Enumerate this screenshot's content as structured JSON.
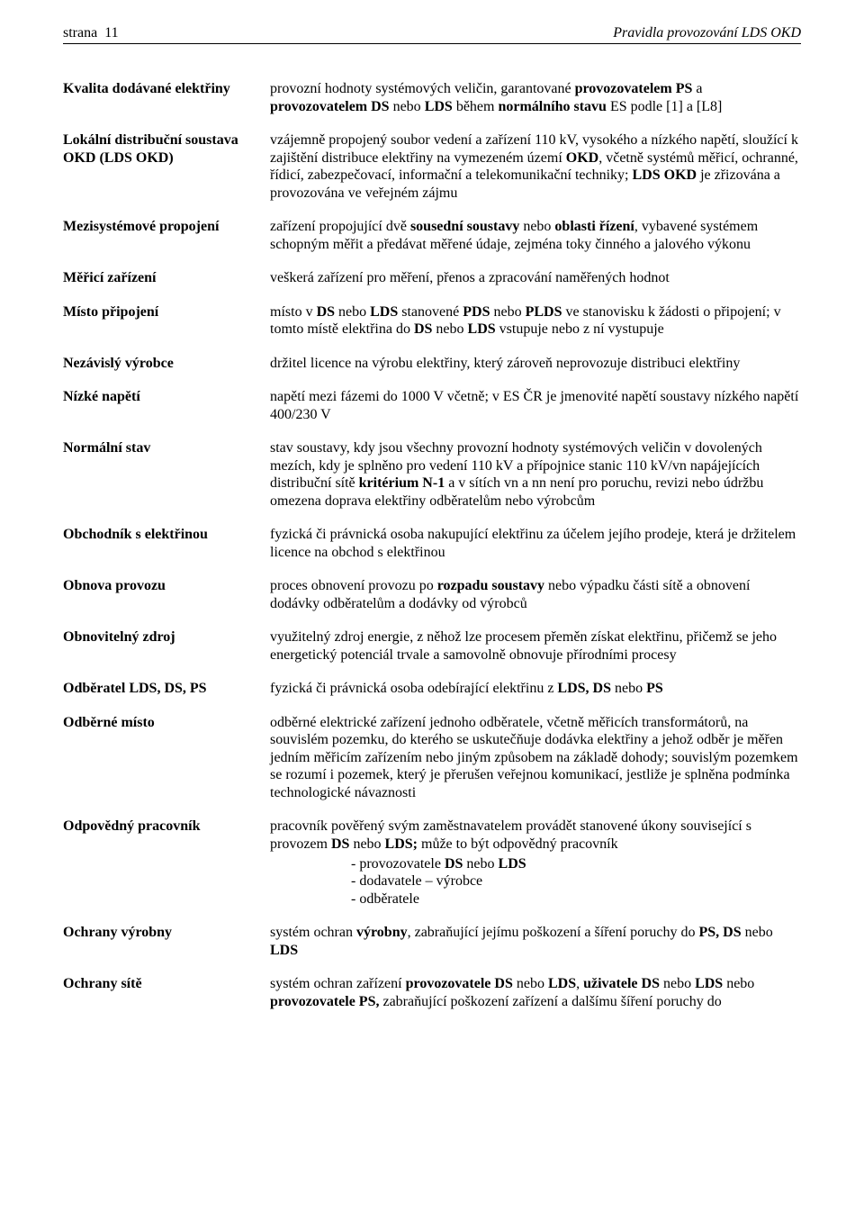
{
  "header": {
    "page_label": "strana",
    "page_number": "11",
    "doc_title": "Pravidla provozování LDS OKD"
  },
  "definitions": [
    {
      "term": "Kvalita dodávané elektřiny",
      "desc_html": "provozní hodnoty systémových veličin, garantované <b>provozovatelem PS</b> a <b>provozovatelem DS</b> nebo <b>LDS</b> během <b>normálního stavu</b> ES podle [1] a [L8]"
    },
    {
      "term": "Lokální distribuční soustava OKD (LDS OKD)",
      "desc_html": "vzájemně propojený soubor vedení a zařízení 110 kV, vysokého a nízkého napětí, sloužící k zajištění distribuce elektřiny na vymezeném území <b>OKD</b>, včetně systémů měřicí, ochranné, řídicí, zabezpečovací, informační a telekomunikační techniky; <b>LDS OKD</b> je zřizována a provozována ve veřejném zájmu"
    },
    {
      "term": "Mezisystémové propojení",
      "desc_html": "zařízení propojující dvě <b>sousední soustavy</b> nebo <b>oblasti řízení</b>, vybavené systémem schopným měřit a předávat měřené údaje, zejména toky činného a jalového výkonu"
    },
    {
      "term": "Měřicí zařízení",
      "desc_html": "veškerá zařízení pro měření, přenos a zpracování naměřených hodnot"
    },
    {
      "term": "Místo připojení",
      "desc_html": "místo v <b>DS</b> nebo <b>LDS</b> stanovené <b>PDS</b> nebo <b>PLDS</b> ve stanovisku k žádosti o připojení; v tomto místě elektřina do <b>DS</b> nebo <b>LDS</b> vstupuje nebo z ní vystupuje"
    },
    {
      "term": "Nezávislý výrobce",
      "desc_html": "držitel licence na výrobu elektřiny, který zároveň neprovozuje distribuci elektřiny"
    },
    {
      "term": "Nízké napětí",
      "desc_html": "napětí mezi fázemi do 1000 V včetně; v ES ČR je jmenovité napětí soustavy nízkého napětí 400/230 V"
    },
    {
      "term": "Normální stav",
      "desc_html": "stav soustavy, kdy jsou všechny provozní hodnoty systémových veličin v dovolených mezích, kdy je splněno pro vedení 110 kV a přípojnice stanic 110 kV/vn napájejících distribuční sítě <b>kritérium N-1</b> a v sítích vn a nn není pro poruchu, revizi nebo údržbu omezena doprava elektřiny odběratelům nebo výrobcům"
    },
    {
      "term": "Obchodník s elektřinou",
      "desc_html": "fyzická či právnická osoba nakupující elektřinu za účelem jejího prodeje, která je držitelem licence na obchod s elektřinou"
    },
    {
      "term": "Obnova provozu",
      "desc_html": "proces obnovení provozu po <b>rozpadu soustavy</b> nebo výpadku části sítě a obnovení dodávky odběratelům a dodávky od výrobců"
    },
    {
      "term": "Obnovitelný zdroj",
      "desc_html": "využitelný zdroj energie, z něhož lze procesem přeměn získat elektřinu, přičemž se jeho energetický potenciál trvale a samovolně obnovuje přírodními procesy"
    },
    {
      "term": "Odběratel LDS, DS, PS",
      "desc_html": "fyzická či právnická osoba odebírající elektřinu z <b>LDS, DS</b> nebo <b>PS</b>"
    },
    {
      "term": "Odběrné místo",
      "desc_html": "odběrné elektrické zařízení jednoho odběratele, včetně měřicích transformátorů, na souvislém pozemku, do kterého se uskutečňuje dodávka elektřiny a jehož odběr je měřen jedním měřicím zařízením nebo jiným způsobem na základě dohody; souvislým pozemkem se rozumí i pozemek, který je přerušen veřejnou komunikací, jestliže je splněna podmínka technologické návaznosti"
    },
    {
      "term": "Odpovědný pracovník",
      "desc_html": "pracovník pověřený svým zaměstnavatelem provádět stanovené úkony související s provozem <b>DS</b> nebo <b>LDS;</b> může to být odpovědný pracovník<div class='sublist'><span class='subitem'>- provozovatele <b>DS</b> nebo <b>LDS</b></span><span class='subitem'>- dodavatele – výrobce</span><span class='subitem'>- odběratele</span></div>"
    },
    {
      "term": "Ochrany výrobny",
      "desc_html": "systém ochran <b>výrobny</b>, zabraňující jejímu poškození a šíření poruchy do <b>PS, DS</b> nebo <b>LDS</b>"
    },
    {
      "term": "Ochrany sítě",
      "desc_html": "systém ochran zařízení <b>provozovatele DS</b> nebo <b>LDS</b>, <b>uživatele DS</b> nebo <b>LDS</b> nebo <b>provozovatele PS,</b> zabraňující poškození zařízení a dalšímu šíření poruchy do"
    }
  ]
}
